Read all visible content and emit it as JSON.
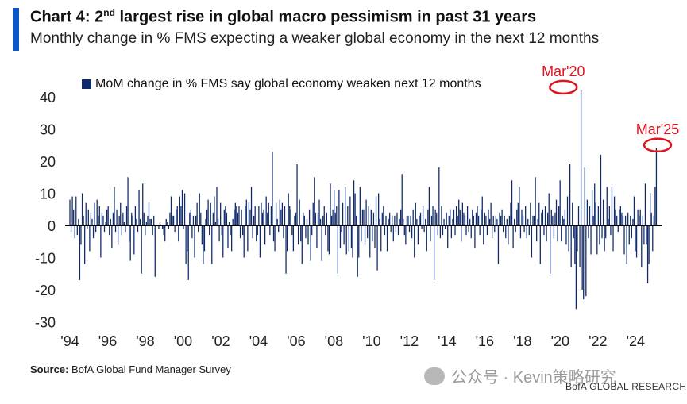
{
  "header": {
    "title_prefix": "Chart 4: 2",
    "title_sup": "nd",
    "title_suffix": " largest rise in global macro pessimism in past 31 years",
    "subtitle": "Monthly change in % FMS expecting a weaker global economy in the next 12 months"
  },
  "footer": {
    "source_label": "Source:",
    "source_text": " BofA Global Fund Manager Survey",
    "watermark": "公众号 · Kevin策略研究",
    "brand": "BofA GLOBAL RESEARCH"
  },
  "colors": {
    "bar": "#0f2a6b",
    "accent": "#0a58ca",
    "highlight": "#e0141e",
    "zero_line": "#000000"
  },
  "chart_data": {
    "type": "bar",
    "legend": "MoM change in % FMS say global economy weaken next 12 months",
    "legend_position": "top-left",
    "grid": false,
    "ylim": [
      -30,
      45
    ],
    "yticks": [
      40,
      30,
      20,
      10,
      0,
      -10,
      -20,
      -30
    ],
    "xticks": [
      "'94",
      "'96",
      "'98",
      "'00",
      "'02",
      "'04",
      "'06",
      "'08",
      "'10",
      "'12",
      "'14",
      "'16",
      "'18",
      "'20",
      "'22",
      "'24"
    ],
    "x_start": "1994-01",
    "x_end": "2025-03",
    "annotations": [
      {
        "label": "Mar'20",
        "date": "2020-03",
        "value": 42
      },
      {
        "label": "Mar'25",
        "date": "2025-03",
        "value": 24
      }
    ],
    "values": [
      8,
      -2,
      9,
      5,
      -4,
      9,
      -3,
      2,
      -17,
      -6,
      10,
      3,
      -12,
      7,
      -1,
      5,
      -8,
      4,
      2,
      -4,
      7,
      -2,
      8,
      3,
      6,
      -10,
      4,
      3,
      -2,
      1,
      5,
      6,
      -3,
      2,
      -7,
      4,
      12,
      -2,
      5,
      -6,
      3,
      7,
      -3,
      4,
      1,
      -2,
      6,
      15,
      -5,
      -11,
      4,
      3,
      -9,
      6,
      2,
      -2,
      11,
      2,
      -15,
      13,
      4,
      -3,
      1,
      3,
      7,
      2,
      2,
      -3,
      3,
      -16,
      0,
      0,
      -1,
      1,
      0,
      -1,
      -3,
      -5,
      2,
      1,
      -1,
      4,
      9,
      3,
      3,
      -2,
      5,
      6,
      -5,
      9,
      6,
      11,
      -1,
      10,
      -12,
      -8,
      -17,
      4,
      5,
      -4,
      3,
      -10,
      3,
      7,
      -2,
      10,
      4,
      -6,
      -12,
      -8,
      2,
      5,
      8,
      -3,
      7,
      -12,
      4,
      9,
      1,
      12,
      2,
      -5,
      7,
      -3,
      -10,
      5,
      6,
      4,
      -7,
      1,
      -3,
      -8,
      2,
      5,
      7,
      6,
      4,
      6,
      -4,
      5,
      -3,
      -10,
      6,
      8,
      -8,
      7,
      5,
      12,
      -4,
      3,
      6,
      -5,
      -3,
      6,
      -10,
      7,
      4,
      5,
      -6,
      9,
      4,
      7,
      -3,
      6,
      23,
      -5,
      -8,
      7,
      2,
      -2,
      8,
      5,
      7,
      -4,
      6,
      -15,
      -8,
      10,
      6,
      5,
      -3,
      -8,
      3,
      4,
      19,
      -6,
      8,
      -5,
      -12,
      4,
      3,
      -4,
      2,
      -6,
      5,
      -11,
      -3,
      7,
      15,
      4,
      -7,
      4,
      8,
      2,
      -11,
      3,
      6,
      -3,
      4,
      -8,
      -9,
      13,
      3,
      5,
      11,
      4,
      6,
      -15,
      11,
      -7,
      -2,
      7,
      -6,
      12,
      -9,
      6,
      -8,
      9,
      -7,
      -10,
      14,
      10,
      3,
      -16,
      -10,
      12,
      -5,
      5,
      5,
      -6,
      8,
      -4,
      6,
      -10,
      5,
      -5,
      4,
      -7,
      9,
      -14,
      10,
      2,
      -8,
      4,
      6,
      -3,
      3,
      -8,
      2,
      4,
      -2,
      3,
      -5,
      3,
      -2,
      4,
      -3,
      2,
      5,
      16,
      2,
      -3,
      -6,
      3,
      3,
      -2,
      3,
      -4,
      5,
      -10,
      7,
      2,
      -6,
      3,
      4,
      -1,
      6,
      -2,
      2,
      -8,
      5,
      12,
      -5,
      3,
      6,
      -17,
      5,
      4,
      -3,
      18,
      -4,
      6,
      -3,
      2,
      -1,
      4,
      -7,
      3,
      5,
      -4,
      2,
      5,
      -3,
      6,
      3,
      8,
      5,
      -5,
      7,
      4,
      3,
      -3,
      6,
      -2,
      2,
      -4,
      5,
      3,
      -7,
      4,
      6,
      3,
      -3,
      5,
      9,
      -6,
      4,
      3,
      -3,
      5,
      2,
      7,
      -4,
      3,
      -2,
      3,
      2,
      -12,
      4,
      3,
      5,
      -2,
      3,
      -4,
      2,
      -6,
      3,
      7,
      14,
      -7,
      2,
      -2,
      5,
      7,
      12,
      -4,
      5,
      3,
      -2,
      6,
      -4,
      2,
      -3,
      7,
      -10,
      3,
      3,
      15,
      -5,
      2,
      7,
      -12,
      4,
      5,
      -3,
      6,
      -5,
      4,
      10,
      -15,
      5,
      3,
      -4,
      4,
      8,
      -5,
      6,
      14,
      -5,
      3,
      2,
      5,
      -6,
      9,
      -8,
      19,
      -13,
      7,
      -4,
      -12,
      -26,
      -8,
      6,
      -13,
      42,
      -20,
      -23,
      18,
      -22,
      8,
      -4,
      6,
      -9,
      11,
      3,
      13,
      7,
      -9,
      6,
      -6,
      22,
      -4,
      8,
      -8,
      -4,
      12,
      2,
      6,
      -3,
      12,
      -8,
      9,
      5,
      3,
      -2,
      5,
      6,
      4,
      3,
      -9,
      3,
      -12,
      4,
      -6,
      3,
      -4,
      2,
      9,
      -8,
      -10,
      5,
      3,
      5,
      -13,
      3,
      -6,
      13,
      -6,
      -18,
      -12,
      10,
      4,
      -8,
      3,
      12,
      24,
      0
    ]
  }
}
